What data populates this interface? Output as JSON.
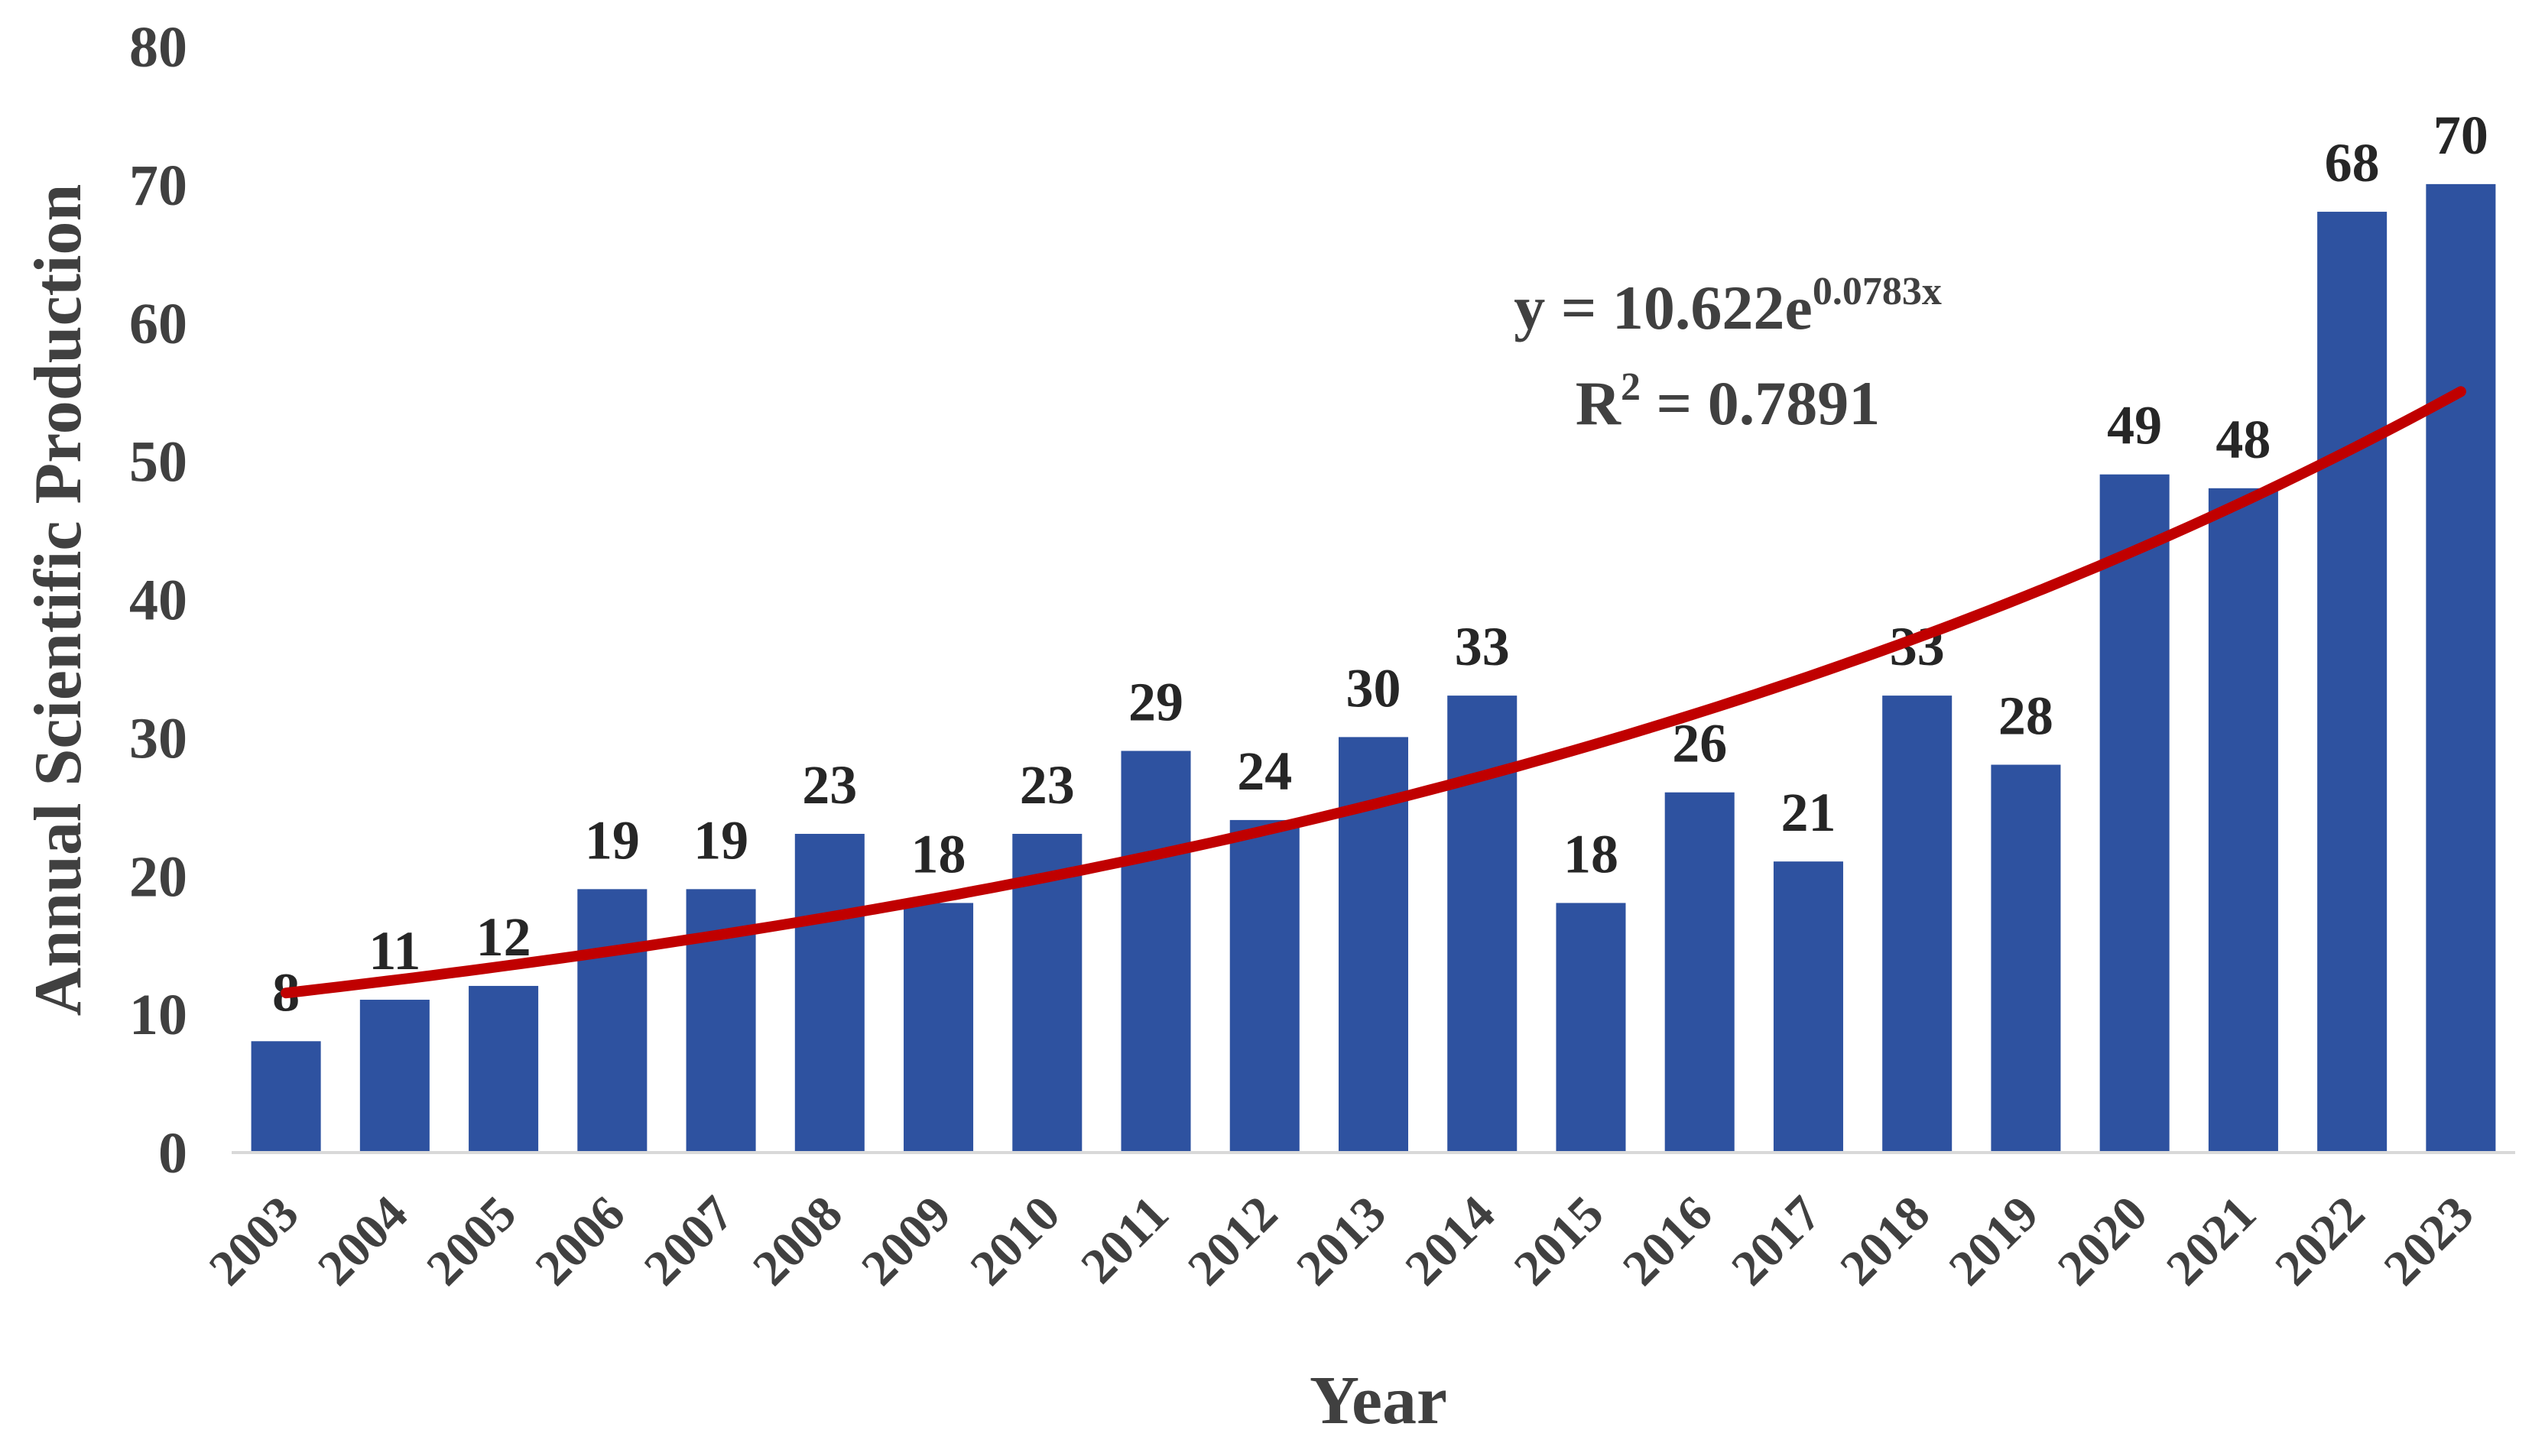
{
  "chart_data": {
    "type": "bar",
    "title": "",
    "xlabel": "Year",
    "ylabel": "Annual Scientific Production",
    "ylim": [
      0,
      80
    ],
    "yticks": [
      0,
      10,
      20,
      30,
      40,
      50,
      60,
      70,
      80
    ],
    "grid": false,
    "categories": [
      "2003",
      "2004",
      "2005",
      "2006",
      "2007",
      "2008",
      "2009",
      "2010",
      "2011",
      "2012",
      "2013",
      "2014",
      "2015",
      "2016",
      "2017",
      "2018",
      "2019",
      "2020",
      "2021",
      "2022",
      "2023"
    ],
    "series": [
      {
        "name": "Annual Scientific Production",
        "values": [
          8,
          11,
          12,
          19,
          19,
          23,
          18,
          23,
          29,
          24,
          30,
          33,
          18,
          26,
          21,
          33,
          28,
          49,
          48,
          68,
          70
        ],
        "color": "#2E52A0"
      }
    ],
    "trendline": {
      "type": "exponential",
      "a": 10.622,
      "b": 0.0783,
      "color": "#C00000",
      "equation_prefix": "y = 10.622e",
      "equation_exponent": "0.0783x",
      "r2_label": "R",
      "r2_superscript": "2",
      "r2_value": " = 0.7891"
    },
    "colors": {
      "axis": "#d9d9d9",
      "text": "#404040",
      "label": "#262626"
    }
  }
}
